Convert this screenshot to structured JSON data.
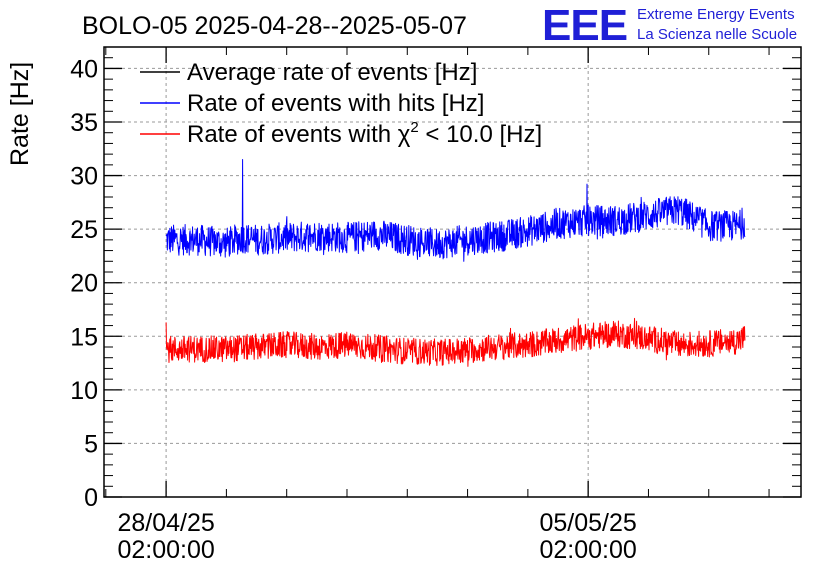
{
  "chart_data": {
    "type": "line",
    "title": "BOLO-05 2025-04-28--2025-05-07",
    "xlabel": "",
    "ylabel": "Rate [Hz]",
    "ylim": [
      0,
      42
    ],
    "yticks": [
      0,
      5,
      10,
      15,
      20,
      25,
      30,
      35,
      40
    ],
    "xticks": [
      {
        "line1": "28/04/25",
        "line2": "02:00:00",
        "day": 0
      },
      {
        "line1": "05/05/25",
        "line2": "02:00:00",
        "day": 7
      }
    ],
    "xlim_days": [
      -1.03,
      10.53
    ],
    "grid": true,
    "legend_position": "top-left",
    "series": [
      {
        "name": "Average rate of events [Hz]",
        "color": "#000000",
        "x": [],
        "y": []
      },
      {
        "name": "Rate of events with hits [Hz]",
        "color": "#0000ff",
        "x": [
          0,
          0.5,
          1.0,
          1.27,
          1.5,
          2.0,
          2.5,
          3.0,
          3.5,
          4.0,
          4.5,
          5.0,
          5.5,
          6.0,
          6.5,
          7.0,
          7.5,
          8.0,
          8.5,
          9.0,
          9.5,
          9.6
        ],
        "y": [
          24.0,
          24.0,
          23.7,
          24.2,
          24.0,
          24.2,
          24.4,
          24.2,
          24.5,
          24.0,
          23.6,
          24.0,
          24.3,
          24.8,
          25.5,
          25.8,
          25.8,
          26.3,
          26.8,
          25.3,
          25.3,
          25.7
        ],
        "spikes": [
          {
            "x": 1.27,
            "y": 31.5
          },
          {
            "x": 6.98,
            "y": 29.2
          }
        ]
      },
      {
        "name": "Rate of events with χ² < 10.0 [Hz]",
        "color": "#ff0000",
        "x": [
          0,
          0.5,
          1.0,
          1.5,
          2.0,
          2.5,
          3.0,
          3.5,
          4.0,
          4.5,
          5.0,
          5.5,
          6.0,
          6.5,
          7.0,
          7.5,
          8.0,
          8.5,
          9.0,
          9.5,
          9.6
        ],
        "y": [
          13.8,
          13.8,
          13.8,
          14.0,
          14.2,
          14.0,
          14.2,
          13.9,
          13.6,
          13.5,
          13.7,
          14.0,
          14.2,
          14.6,
          15.0,
          15.2,
          14.8,
          14.2,
          14.3,
          14.6,
          14.9
        ],
        "spikes": [
          {
            "x": 0,
            "y": 16.3
          }
        ]
      }
    ]
  },
  "legend_chi_label": {
    "before": "Rate of events with ",
    "symbol": "χ",
    "sup": "2",
    "after": " < 10.0 [Hz]"
  },
  "logo": {
    "mark": "EEE",
    "line1": "Extreme Energy Events",
    "line2": "La Scienza nelle Scuole",
    "color": "#1f1fd6"
  }
}
